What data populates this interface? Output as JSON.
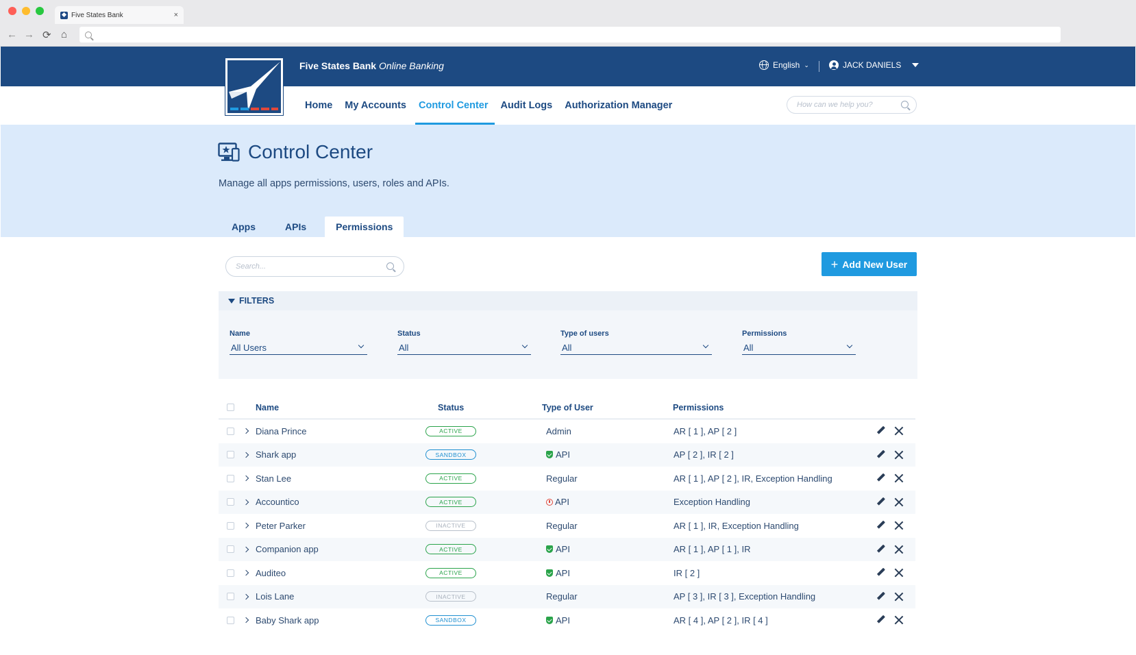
{
  "browser": {
    "tab_title": "Five States Bank",
    "tab_close": "×",
    "back": "←",
    "forward": "→",
    "reload": "⟳",
    "home": "⌂"
  },
  "header": {
    "brand_name": "Five States Bank",
    "brand_suffix": "Online Banking",
    "language": "English",
    "user_name": "JACK DANIELS"
  },
  "nav": {
    "items": [
      {
        "label": "Home",
        "active": false
      },
      {
        "label": "My Accounts",
        "active": false
      },
      {
        "label": "Control Center",
        "active": true
      },
      {
        "label": "Audit Logs",
        "active": false
      },
      {
        "label": "Authorization Manager",
        "active": false
      }
    ],
    "help_placeholder": "How can we help you?"
  },
  "page": {
    "title": "Control Center",
    "description": "Manage all apps permissions, users, roles and APIs.",
    "tabs": [
      {
        "label": "Apps",
        "active": false
      },
      {
        "label": "APIs",
        "active": false
      },
      {
        "label": "Permissions",
        "active": true
      }
    ]
  },
  "toolbar": {
    "search_placeholder": "Search...",
    "add_button": "Add New User",
    "add_plus": "+"
  },
  "filters": {
    "heading": "FILTERS",
    "fields": [
      {
        "label": "Name",
        "value": "All Users"
      },
      {
        "label": "Status",
        "value": "All"
      },
      {
        "label": "Type of users",
        "value": "All"
      },
      {
        "label": "Permissions",
        "value": "All"
      }
    ]
  },
  "table": {
    "columns": {
      "name": "Name",
      "status": "Status",
      "type": "Type of User",
      "permissions": "Permissions"
    },
    "rows": [
      {
        "name": "Diana Prince",
        "status": "ACTIVE",
        "status_kind": "active",
        "type": "Admin",
        "type_icon": "",
        "permissions": "AR [ 1 ], AP [ 2 ]"
      },
      {
        "name": "Shark app",
        "status": "SANDBOX",
        "status_kind": "sandbox",
        "type": "API",
        "type_icon": "shield-check-icon",
        "permissions": "AP [ 2 ], IR [ 2 ]"
      },
      {
        "name": "Stan Lee",
        "status": "ACTIVE",
        "status_kind": "active",
        "type": "Regular",
        "type_icon": "",
        "permissions": "AR [ 1 ], AP [ 2 ], IR, Exception Handling"
      },
      {
        "name": "Accountico",
        "status": "ACTIVE",
        "status_kind": "active",
        "type": "API",
        "type_icon": "warning-icon",
        "permissions": "Exception Handling"
      },
      {
        "name": "Peter Parker",
        "status": "INACTIVE",
        "status_kind": "inactive",
        "type": "Regular",
        "type_icon": "",
        "permissions": "AR [ 1 ], IR, Exception Handling"
      },
      {
        "name": "Companion app",
        "status": "ACTIVE",
        "status_kind": "active",
        "type": "API",
        "type_icon": "shield-check-icon",
        "permissions": "AR [ 1 ], AP [ 1 ], IR"
      },
      {
        "name": "Auditeo",
        "status": "ACTIVE",
        "status_kind": "active",
        "type": "API",
        "type_icon": "shield-check-icon",
        "permissions": "IR [ 2 ]"
      },
      {
        "name": "Lois Lane",
        "status": "INACTIVE",
        "status_kind": "inactive",
        "type": "Regular",
        "type_icon": "",
        "permissions": "AP [ 3 ], IR [ 3 ], Exception Handling"
      },
      {
        "name": "Baby Shark app",
        "status": "SANDBOX",
        "status_kind": "sandbox",
        "type": "API",
        "type_icon": "shield-check-icon",
        "permissions": "AR [ 4 ], AP [ 2 ], IR [ 4 ]"
      }
    ]
  },
  "colors": {
    "header_bg": "#1d4a82",
    "accent": "#1f9ae0",
    "hero_bg": "#dbeafb",
    "active_green": "#2aa34a",
    "warning_red": "#e0473a"
  }
}
